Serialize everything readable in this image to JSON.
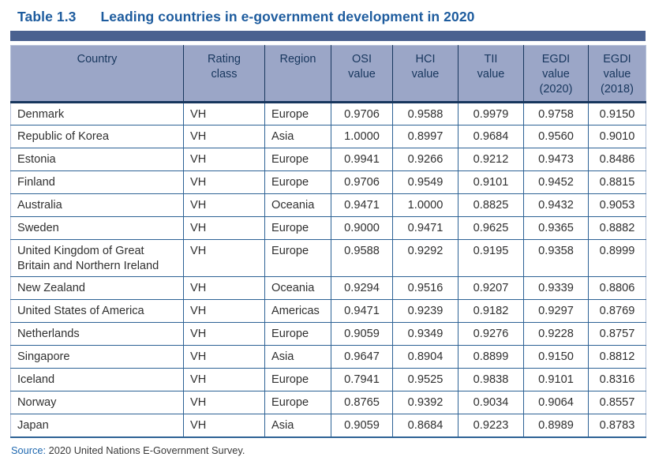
{
  "page": {
    "title_label": "Table 1.3",
    "title_text": "Leading countries in e-government development in 2020",
    "source_label": "Source:",
    "source_text": " 2020 United Nations E-Government Survey."
  },
  "colors": {
    "title_blue": "#1e5c9e",
    "rule_bar_blue": "#4a6190",
    "header_background": "#9ba6c7",
    "header_text_navy": "#17365d",
    "grid_line_blue": "#2d6295",
    "outer_border_light": "#b6c2d9",
    "body_text": "#303030"
  },
  "chart_data": {
    "type": "table",
    "title": "Leading countries in e-government development in 2020",
    "columns": [
      "Country",
      "Rating class",
      "Region",
      "OSI value",
      "HCI value",
      "TII value",
      "EGDI value (2020)",
      "EGDI value (2018)"
    ],
    "rows_summary": "14 leading countries, all rated VH, ranked by EGDI value (2020) descending from Denmark 0.9758 to Japan 0.8989"
  },
  "table": {
    "columns": [
      {
        "id": "country",
        "label": "Country"
      },
      {
        "id": "rating-class",
        "label": "Rating\nclass"
      },
      {
        "id": "region",
        "label": "Region"
      },
      {
        "id": "osi-value",
        "label": "OSI\nvalue"
      },
      {
        "id": "hci-value",
        "label": "HCI\nvalue"
      },
      {
        "id": "tii-value",
        "label": "TII\nvalue"
      },
      {
        "id": "egdi-value-2020",
        "label": "EGDI\nvalue\n(2020)"
      },
      {
        "id": "egdi-value-2018",
        "label": "EGDI\nvalue\n(2018)"
      }
    ],
    "rows": [
      [
        "Denmark",
        "VH",
        "Europe",
        "0.9706",
        "0.9588",
        "0.9979",
        "0.9758",
        "0.9150"
      ],
      [
        "Republic of Korea",
        "VH",
        "Asia",
        "1.0000",
        "0.8997",
        "0.9684",
        "0.9560",
        "0.9010"
      ],
      [
        "Estonia",
        "VH",
        "Europe",
        "0.9941",
        "0.9266",
        "0.9212",
        "0.9473",
        "0.8486"
      ],
      [
        "Finland",
        "VH",
        "Europe",
        "0.9706",
        "0.9549",
        "0.9101",
        "0.9452",
        "0.8815"
      ],
      [
        "Australia",
        "VH",
        "Oceania",
        "0.9471",
        "1.0000",
        "0.8825",
        "0.9432",
        "0.9053"
      ],
      [
        "Sweden",
        "VH",
        "Europe",
        "0.9000",
        "0.9471",
        "0.9625",
        "0.9365",
        "0.8882"
      ],
      [
        "United Kingdom of Great\nBritain and Northern Ireland",
        "VH",
        "Europe",
        "0.9588",
        "0.9292",
        "0.9195",
        "0.9358",
        "0.8999"
      ],
      [
        "New Zealand",
        "VH",
        "Oceania",
        "0.9294",
        "0.9516",
        "0.9207",
        "0.9339",
        "0.8806"
      ],
      [
        "United States of America",
        "VH",
        "Americas",
        "0.9471",
        "0.9239",
        "0.9182",
        "0.9297",
        "0.8769"
      ],
      [
        "Netherlands",
        "VH",
        "Europe",
        "0.9059",
        "0.9349",
        "0.9276",
        "0.9228",
        "0.8757"
      ],
      [
        "Singapore",
        "VH",
        "Asia",
        "0.9647",
        "0.8904",
        "0.8899",
        "0.9150",
        "0.8812"
      ],
      [
        "Iceland",
        "VH",
        "Europe",
        "0.7941",
        "0.9525",
        "0.9838",
        "0.9101",
        "0.8316"
      ],
      [
        "Norway",
        "VH",
        "Europe",
        "0.8765",
        "0.9392",
        "0.9034",
        "0.9064",
        "0.8557"
      ],
      [
        "Japan",
        "VH",
        "Asia",
        "0.9059",
        "0.8684",
        "0.9223",
        "0.8989",
        "0.8783"
      ]
    ]
  }
}
